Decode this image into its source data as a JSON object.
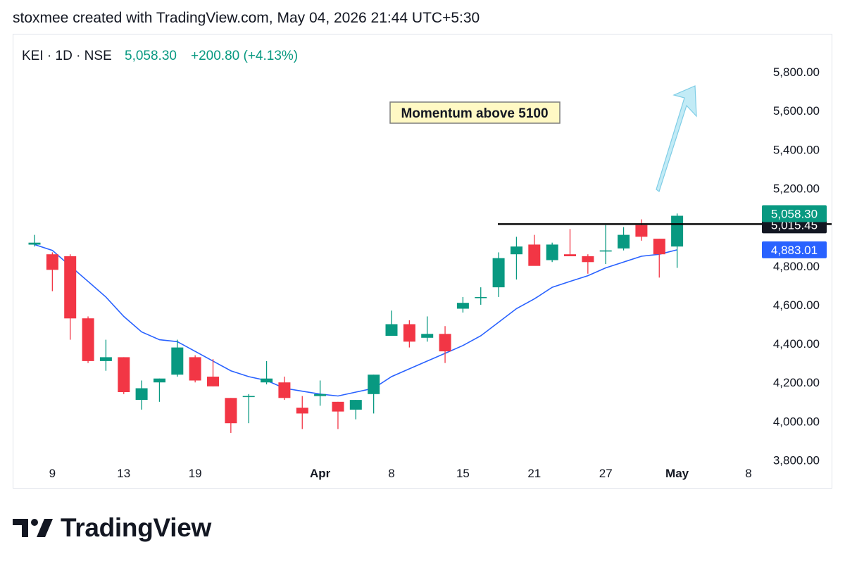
{
  "header": {
    "text": "stoxmee created with TradingView.com, May 04, 2026 21:44 UTC+5:30"
  },
  "legend": {
    "symbol": "KEI · 1D · NSE",
    "last": "5,058.30",
    "change": "+200.80 (+4.13%)"
  },
  "annotation": {
    "text": "Momentum above 5100"
  },
  "price_labels": {
    "last": "5,058.30",
    "level": "5,015.45",
    "ma": "4,883.01"
  },
  "brand": {
    "name": "TradingView"
  },
  "colors": {
    "up": "#089981",
    "down": "#f23645",
    "ma": "#2962ff",
    "arrow": "#9fdcee",
    "note_bg": "#fff9c4"
  },
  "chart_data": {
    "type": "candlestick",
    "ylim": [
      3700,
      5900
    ],
    "y_ticks": [
      "5,800.00",
      "5,600.00",
      "5,400.00",
      "5,200.00",
      "4,800.00",
      "4,600.00",
      "4,400.00",
      "4,200.00",
      "4,000.00",
      "3,800.00"
    ],
    "x_ticks": [
      {
        "label": "9",
        "bold": false,
        "i": 1
      },
      {
        "label": "13",
        "bold": false,
        "i": 5
      },
      {
        "label": "19",
        "bold": false,
        "i": 9
      },
      {
        "label": "Apr",
        "bold": true,
        "i": 16
      },
      {
        "label": "8",
        "bold": false,
        "i": 20
      },
      {
        "label": "15",
        "bold": false,
        "i": 24
      },
      {
        "label": "21",
        "bold": false,
        "i": 28
      },
      {
        "label": "27",
        "bold": false,
        "i": 32
      },
      {
        "label": "May",
        "bold": true,
        "i": 36
      },
      {
        "label": "8",
        "bold": false,
        "i": 40
      }
    ],
    "candles": [
      {
        "o": 4910,
        "h": 4960,
        "l": 4900,
        "c": 4920
      },
      {
        "o": 4860,
        "h": 4870,
        "l": 4670,
        "c": 4780
      },
      {
        "o": 4850,
        "h": 4860,
        "l": 4420,
        "c": 4530
      },
      {
        "o": 4530,
        "h": 4540,
        "l": 4300,
        "c": 4310
      },
      {
        "o": 4310,
        "h": 4420,
        "l": 4260,
        "c": 4330
      },
      {
        "o": 4330,
        "h": 4330,
        "l": 4140,
        "c": 4150
      },
      {
        "o": 4110,
        "h": 4210,
        "l": 4060,
        "c": 4170
      },
      {
        "o": 4200,
        "h": 4220,
        "l": 4100,
        "c": 4220
      },
      {
        "o": 4240,
        "h": 4420,
        "l": 4230,
        "c": 4380
      },
      {
        "o": 4330,
        "h": 4340,
        "l": 4200,
        "c": 4210
      },
      {
        "o": 4230,
        "h": 4320,
        "l": 4180,
        "c": 4180
      },
      {
        "o": 4120,
        "h": 4120,
        "l": 3940,
        "c": 3990
      },
      {
        "o": 4130,
        "h": 4140,
        "l": 3990,
        "c": 4130
      },
      {
        "o": 4200,
        "h": 4310,
        "l": 4190,
        "c": 4220
      },
      {
        "o": 4200,
        "h": 4230,
        "l": 4110,
        "c": 4120
      },
      {
        "o": 4070,
        "h": 4130,
        "l": 3960,
        "c": 4040
      },
      {
        "o": 4130,
        "h": 4210,
        "l": 4080,
        "c": 4140
      },
      {
        "o": 4100,
        "h": 4100,
        "l": 3960,
        "c": 4050
      },
      {
        "o": 4060,
        "h": 4110,
        "l": 4010,
        "c": 4110
      },
      {
        "o": 4140,
        "h": 4240,
        "l": 4040,
        "c": 4240
      },
      {
        "o": 4440,
        "h": 4570,
        "l": 4440,
        "c": 4500
      },
      {
        "o": 4500,
        "h": 4520,
        "l": 4380,
        "c": 4410
      },
      {
        "o": 4430,
        "h": 4540,
        "l": 4410,
        "c": 4450
      },
      {
        "o": 4450,
        "h": 4490,
        "l": 4300,
        "c": 4360
      },
      {
        "o": 4580,
        "h": 4640,
        "l": 4560,
        "c": 4610
      },
      {
        "o": 4640,
        "h": 4690,
        "l": 4600,
        "c": 4640
      },
      {
        "o": 4690,
        "h": 4870,
        "l": 4640,
        "c": 4840
      },
      {
        "o": 4860,
        "h": 4950,
        "l": 4730,
        "c": 4900
      },
      {
        "o": 4910,
        "h": 4960,
        "l": 4810,
        "c": 4800
      },
      {
        "o": 4830,
        "h": 4920,
        "l": 4820,
        "c": 4910
      },
      {
        "o": 4860,
        "h": 4990,
        "l": 4850,
        "c": 4850
      },
      {
        "o": 4850,
        "h": 4860,
        "l": 4760,
        "c": 4820
      },
      {
        "o": 4880,
        "h": 5010,
        "l": 4810,
        "c": 4880
      },
      {
        "o": 4890,
        "h": 5000,
        "l": 4880,
        "c": 4960
      },
      {
        "o": 5010,
        "h": 5040,
        "l": 4930,
        "c": 4950
      },
      {
        "o": 4940,
        "h": 4940,
        "l": 4740,
        "c": 4860
      },
      {
        "o": 4900,
        "h": 5070,
        "l": 4790,
        "c": 5058.3
      }
    ],
    "ma": [
      4910,
      4880,
      4800,
      4720,
      4640,
      4540,
      4460,
      4420,
      4410,
      4360,
      4310,
      4260,
      4230,
      4210,
      4170,
      4155,
      4140,
      4130,
      4150,
      4170,
      4230,
      4270,
      4310,
      4350,
      4390,
      4440,
      4510,
      4580,
      4630,
      4690,
      4720,
      4750,
      4790,
      4820,
      4850,
      4860,
      4883.01
    ],
    "level": 5015.45
  }
}
